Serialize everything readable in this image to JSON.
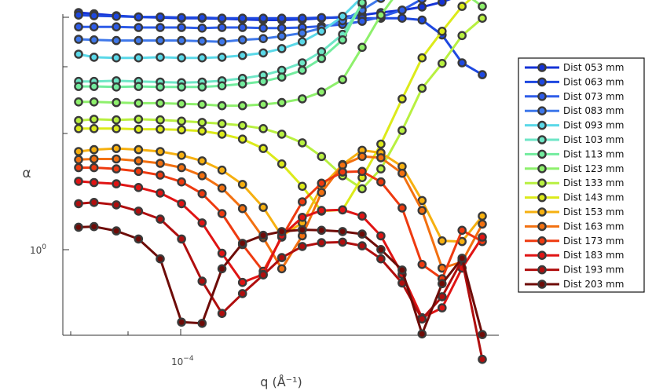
{
  "chart_data": {
    "type": "line",
    "xlabel": "q (Å⁻¹)",
    "ylabel": "α",
    "x_scale": "log",
    "y_scale": "log",
    "x_tick_labels": [
      {
        "value": 0.0001,
        "base": "10",
        "exp": "−4"
      }
    ],
    "y_tick_labels": [
      {
        "value": 1,
        "base": "10",
        "exp": "0"
      }
    ],
    "legend_placement": "right",
    "marker": "circle, dark grey edge",
    "series": [
      {
        "name": "Dist 053 mm",
        "color": "#1533d6",
        "y": [
          470,
          468,
          465,
          463,
          462,
          461,
          461,
          460,
          459,
          458,
          458,
          459,
          461,
          463,
          466,
          470,
          474,
          479,
          487,
          499,
          511
        ]
      },
      {
        "name": "Dist 063 mm",
        "color": "#1e48e0",
        "y": [
          466,
          465,
          464,
          463,
          463,
          462,
          462,
          461,
          461,
          461,
          461,
          461,
          462,
          462,
          461,
          461,
          461,
          458,
          434,
          389,
          370
        ]
      },
      {
        "name": "Dist 073 mm",
        "color": "#2e5ce8",
        "y": [
          447,
          447,
          447,
          446,
          446,
          446,
          445,
          446,
          446,
          445,
          445,
          446,
          448,
          451,
          456,
          463,
          474,
          492,
          509,
          539,
          550
        ]
      },
      {
        "name": "Dist 083 mm",
        "color": "#3f78ea",
        "y": [
          427,
          426,
          425,
          425,
          425,
          425,
          424,
          423,
          426,
          428,
          432,
          437,
          445,
          457,
          474,
          493,
          540,
          565,
          570,
          564,
          539
        ]
      },
      {
        "name": "Dist 093 mm",
        "color": "#5ad8e8",
        "y": [
          403,
          398,
          397,
          397,
          398,
          397,
          397,
          398,
          401,
          405,
          412,
          423,
          440,
          464,
          495,
          530,
          557,
          575,
          575,
          575,
          549
        ]
      },
      {
        "name": "Dist 103 mm",
        "color": "#6ee6c6",
        "y": [
          359,
          359,
          360,
          359,
          358,
          357,
          358,
          360,
          364,
          369,
          377,
          389,
          407,
          435,
          484,
          522,
          555,
          567,
          564,
          546,
          520
        ]
      },
      {
        "name": "Dist 113 mm",
        "color": "#72ec9e",
        "y": [
          351,
          351,
          350,
          351,
          350,
          350,
          350,
          352,
          355,
          359,
          366,
          377,
          396,
          426,
          486,
          542,
          573,
          573,
          558,
          533,
          501
        ]
      },
      {
        "name": "Dist 123 mm",
        "color": "#8ef06c",
        "y": [
          326,
          326,
          325,
          324,
          324,
          323,
          322,
          320,
          320,
          322,
          325,
          331,
          342,
          362,
          414,
          466,
          513,
          530,
          526,
          504,
          480
        ]
      },
      {
        "name": "Dist 133 mm",
        "color": "#b8f040",
        "y": [
          296,
          298,
          297,
          298,
          297,
          295,
          293,
          291,
          288,
          283,
          274,
          260,
          238,
          207,
          186,
          218,
          280,
          348,
          388,
          433,
          461
        ]
      },
      {
        "name": "Dist 143 mm",
        "color": "#dcea1a",
        "y": [
          283,
          283,
          283,
          282,
          282,
          281,
          279,
          274,
          266,
          251,
          226,
          190,
          150,
          152,
          204,
          258,
          331,
          397,
          440,
          480,
          508
        ]
      },
      {
        "name": "Dist 153 mm",
        "color": "#f6b010",
        "y": [
          246,
          249,
          251,
          249,
          246,
          240,
          231,
          216,
          193,
          156,
          110,
          131,
          189,
          225,
          248,
          244,
          222,
          167,
          102,
          101,
          142
        ]
      },
      {
        "name": "Dist 163 mm",
        "color": "#f27010",
        "y": [
          233,
          234,
          234,
          231,
          227,
          220,
          207,
          187,
          154,
          107,
          57,
          110,
          180,
          224,
          238,
          236,
          211,
          151,
          58,
          68,
          129
        ]
      },
      {
        "name": "Dist 173 mm",
        "color": "#ee3a10",
        "y": [
          220,
          220,
          218,
          214,
          208,
          197,
          178,
          146,
          96,
          53,
          108,
          165,
          195,
          213,
          214,
          197,
          155,
          64,
          41,
          119,
          101
        ]
      },
      {
        "name": "Dist 183 mm",
        "color": "#e01414",
        "y": [
          198,
          196,
          194,
          188,
          179,
          162,
          131,
          82,
          35,
          48,
          110,
          140,
          151,
          152,
          142,
          110,
          48,
          -22,
          -6,
          58,
          108
        ]
      },
      {
        "name": "Dist 193 mm",
        "color": "#b00e0e",
        "y": [
          162,
          164,
          160,
          150,
          137,
          105,
          37,
          -15,
          17,
          47,
          75,
          93,
          99,
          100,
          94,
          73,
          34,
          -24,
          12,
          71,
          -89
        ]
      },
      {
        "name": "Dist 203 mm",
        "color": "#6e0c08",
        "y": [
          124,
          125,
          118,
          105,
          73,
          -29,
          -31,
          57,
          98,
          111,
          117,
          120,
          119,
          117,
          113,
          88,
          55,
          -48,
          33,
          74,
          -49
        ]
      }
    ],
    "x": [
      5.5e-05,
      6e-05,
      6.8e-05,
      7.7e-05,
      8.7e-05,
      9.8e-05,
      0.00011,
      0.000123,
      0.000138,
      0.000155,
      0.000172,
      0.000193,
      0.000215,
      0.000242,
      0.00027,
      0.0003,
      0.000338,
      0.000378,
      0.000423,
      0.000473,
      0.00053
    ],
    "y_units_note": ""
  }
}
